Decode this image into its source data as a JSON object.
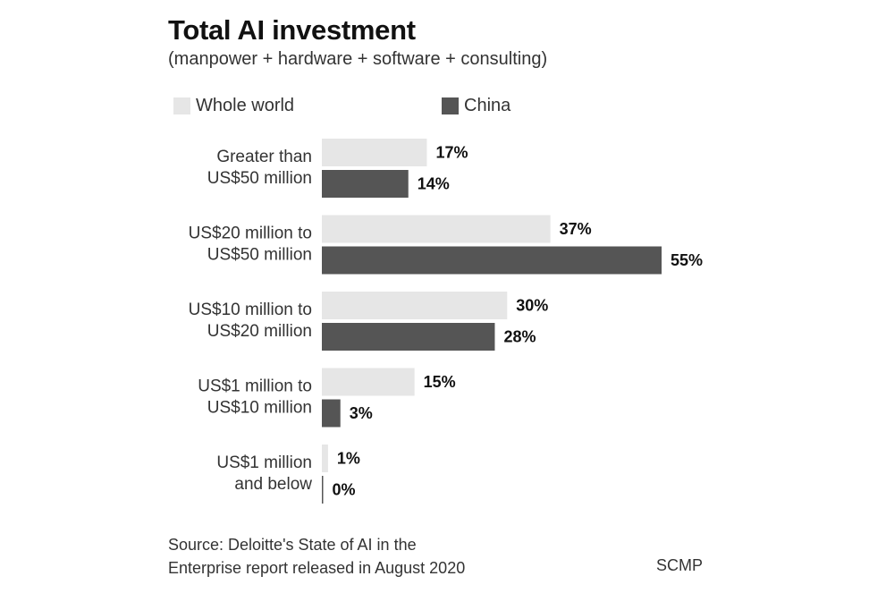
{
  "chart_data": {
    "type": "bar",
    "orientation": "horizontal",
    "title": "Total AI investment",
    "subtitle": "(manpower + hardware + software + consulting)",
    "categories": [
      [
        "Greater than",
        "US$50 million"
      ],
      [
        "US$20 million to",
        "US$50 million"
      ],
      [
        "US$10 million to",
        "US$20 million"
      ],
      [
        "US$1 million to",
        "US$10 million"
      ],
      [
        "US$1 million",
        "and below"
      ]
    ],
    "series": [
      {
        "name": "Whole world",
        "color": "#e6e6e6",
        "values": [
          17,
          37,
          30,
          15,
          1
        ]
      },
      {
        "name": "China",
        "color": "#555555",
        "values": [
          14,
          55,
          28,
          3,
          0
        ]
      }
    ],
    "value_suffix": "%",
    "xlim": [
      0,
      55
    ],
    "grid": false,
    "legend_position": "top-left"
  },
  "source": {
    "line1": "Source: Deloitte's State of AI in the",
    "line2": "Enterprise report released in August 2020"
  },
  "credit": "SCMP"
}
